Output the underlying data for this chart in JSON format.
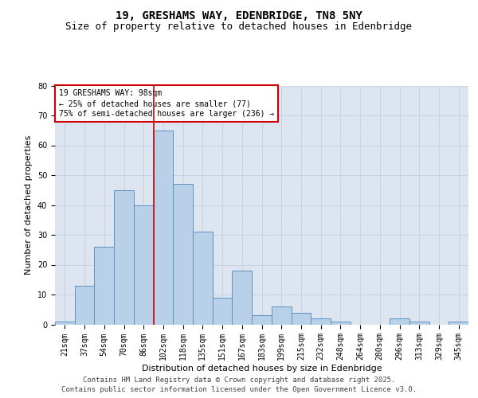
{
  "title1": "19, GRESHAMS WAY, EDENBRIDGE, TN8 5NY",
  "title2": "Size of property relative to detached houses in Edenbridge",
  "xlabel": "Distribution of detached houses by size in Edenbridge",
  "ylabel": "Number of detached properties",
  "categories": [
    "21sqm",
    "37sqm",
    "54sqm",
    "70sqm",
    "86sqm",
    "102sqm",
    "118sqm",
    "135sqm",
    "151sqm",
    "167sqm",
    "183sqm",
    "199sqm",
    "215sqm",
    "232sqm",
    "248sqm",
    "264sqm",
    "280sqm",
    "296sqm",
    "313sqm",
    "329sqm",
    "345sqm"
  ],
  "values": [
    1,
    13,
    26,
    45,
    40,
    65,
    47,
    31,
    9,
    18,
    3,
    6,
    4,
    2,
    1,
    0,
    0,
    2,
    1,
    0,
    1
  ],
  "bar_color": "#b8d0e8",
  "bar_edge_color": "#6090c0",
  "grid_color": "#c8d4e4",
  "background_color": "#dde5f0",
  "vline_x_index": 4.5,
  "vline_color": "#cc0000",
  "annotation_text": "19 GRESHAMS WAY: 98sqm\n← 25% of detached houses are smaller (77)\n75% of semi-detached houses are larger (236) →",
  "annotation_box_color": "#cc0000",
  "ylim": [
    0,
    80
  ],
  "yticks": [
    0,
    10,
    20,
    30,
    40,
    50,
    60,
    70,
    80
  ],
  "footer1": "Contains HM Land Registry data © Crown copyright and database right 2025.",
  "footer2": "Contains public sector information licensed under the Open Government Licence v3.0.",
  "title_fontsize": 10,
  "subtitle_fontsize": 9,
  "axis_label_fontsize": 8,
  "tick_fontsize": 7,
  "annotation_fontsize": 7,
  "footer_fontsize": 6.5
}
